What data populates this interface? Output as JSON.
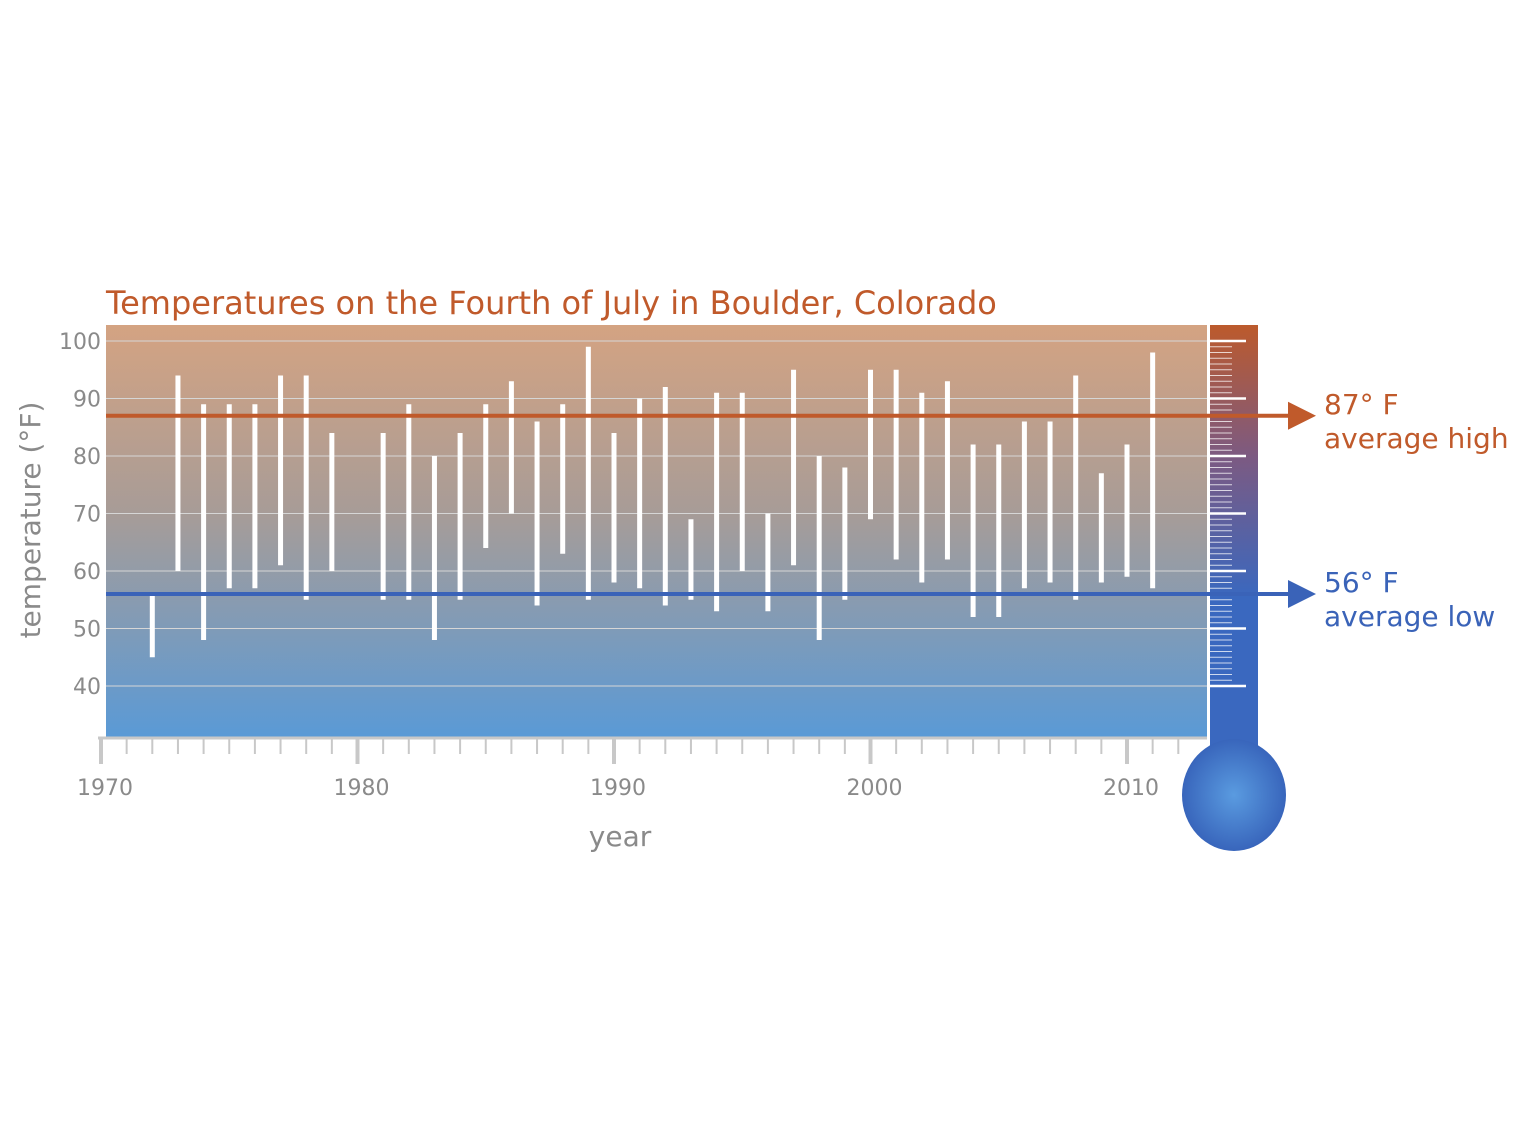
{
  "chart_data": {
    "type": "bar",
    "subtype": "floating-range",
    "title": "Temperatures on the Fourth of July in Boulder, Colorado",
    "xlabel": "year",
    "ylabel": "temperature (°F)",
    "xlim": [
      1970,
      2013
    ],
    "ylim": [
      31,
      103
    ],
    "x_ticks": [
      1970,
      1980,
      1990,
      2000,
      2010
    ],
    "y_ticks": [
      40,
      50,
      60,
      70,
      80,
      90,
      100
    ],
    "grid": true,
    "series": [
      {
        "values": [
          {
            "year": 1972,
            "low": 45,
            "high": 56
          },
          {
            "year": 1973,
            "low": 60,
            "high": 94
          },
          {
            "year": 1974,
            "low": 48,
            "high": 89
          },
          {
            "year": 1975,
            "low": 57,
            "high": 89
          },
          {
            "year": 1976,
            "low": 57,
            "high": 89
          },
          {
            "year": 1977,
            "low": 61,
            "high": 94
          },
          {
            "year": 1978,
            "low": 55,
            "high": 94
          },
          {
            "year": 1979,
            "low": 60,
            "high": 84
          },
          {
            "year": 1981,
            "low": 55,
            "high": 84
          },
          {
            "year": 1982,
            "low": 55,
            "high": 89
          },
          {
            "year": 1983,
            "low": 48,
            "high": 80
          },
          {
            "year": 1984,
            "low": 55,
            "high": 84
          },
          {
            "year": 1985,
            "low": 64,
            "high": 89
          },
          {
            "year": 1986,
            "low": 70,
            "high": 93
          },
          {
            "year": 1987,
            "low": 54,
            "high": 86
          },
          {
            "year": 1988,
            "low": 63,
            "high": 89
          },
          {
            "year": 1989,
            "low": 55,
            "high": 99
          },
          {
            "year": 1990,
            "low": 58,
            "high": 84
          },
          {
            "year": 1991,
            "low": 57,
            "high": 90
          },
          {
            "year": 1992,
            "low": 54,
            "high": 92
          },
          {
            "year": 1993,
            "low": 55,
            "high": 69
          },
          {
            "year": 1994,
            "low": 53,
            "high": 91
          },
          {
            "year": 1995,
            "low": 60,
            "high": 91
          },
          {
            "year": 1996,
            "low": 53,
            "high": 70
          },
          {
            "year": 1997,
            "low": 61,
            "high": 95
          },
          {
            "year": 1998,
            "low": 48,
            "high": 80
          },
          {
            "year": 1999,
            "low": 55,
            "high": 78
          },
          {
            "year": 2000,
            "low": 69,
            "high": 95
          },
          {
            "year": 2001,
            "low": 62,
            "high": 95
          },
          {
            "year": 2002,
            "low": 58,
            "high": 91
          },
          {
            "year": 2003,
            "low": 62,
            "high": 93
          },
          {
            "year": 2004,
            "low": 52,
            "high": 82
          },
          {
            "year": 2005,
            "low": 52,
            "high": 82
          },
          {
            "year": 2006,
            "low": 57,
            "high": 86
          },
          {
            "year": 2007,
            "low": 58,
            "high": 86
          },
          {
            "year": 2008,
            "low": 55,
            "high": 94
          },
          {
            "year": 2009,
            "low": 58,
            "high": 77
          },
          {
            "year": 2010,
            "low": 59,
            "high": 82
          },
          {
            "year": 2011,
            "low": 57,
            "high": 98
          }
        ]
      }
    ],
    "reference_lines": [
      {
        "value": 87,
        "label_top": "87° F",
        "label_bottom": "average high",
        "color": "#c05a2b"
      },
      {
        "value": 56,
        "label_top": "56° F",
        "label_bottom": "average low",
        "color": "#3a63b8"
      }
    ],
    "colors": {
      "title": "#c05a2b",
      "background_top": "#d4a382",
      "background_bottom": "#5a9ad6",
      "bars": "#ffffff",
      "grid": "#d6d6d6",
      "axis": "#c8c8c8",
      "text": "#8a8a8a",
      "thermometer_top": "#bc5a2c",
      "thermometer_bottom": "#3a68bf"
    },
    "decoration": "thermometer"
  }
}
